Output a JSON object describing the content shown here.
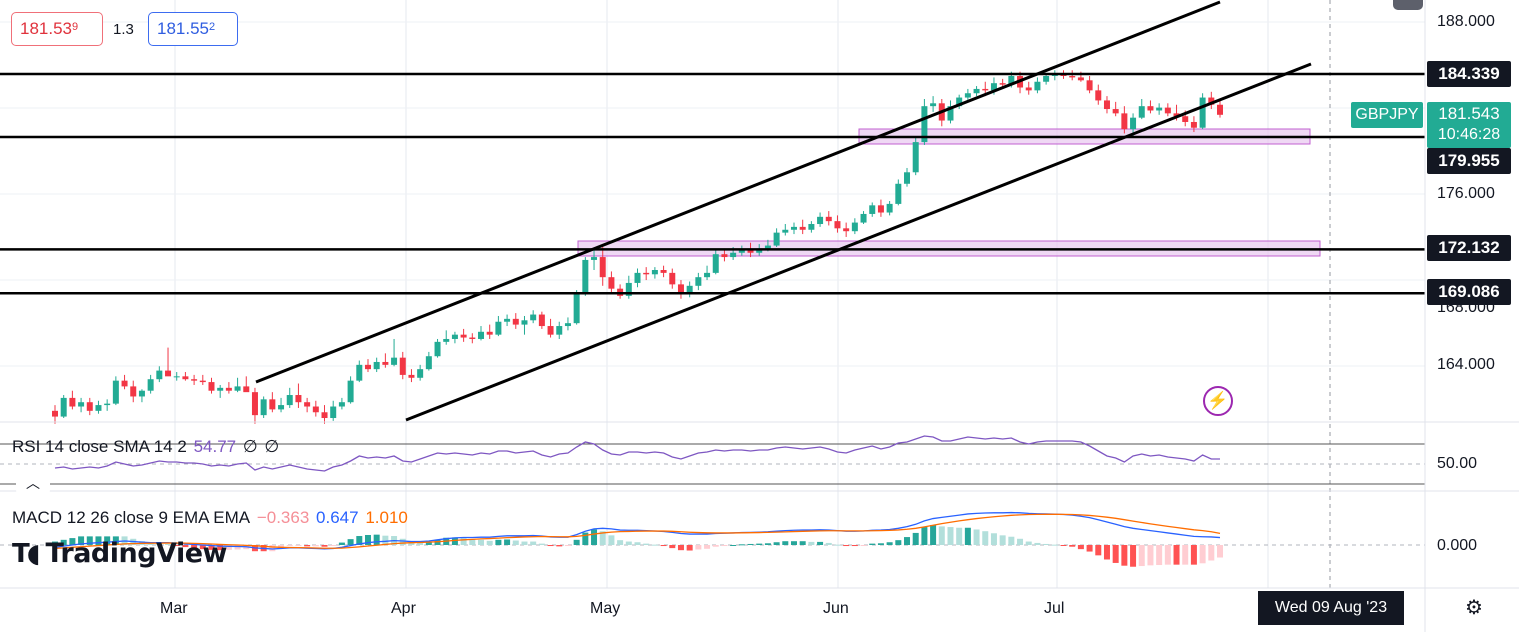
{
  "header": {
    "sell_price_main": "181.53",
    "sell_price_sup": "9",
    "spread": "1.3",
    "buy_price_main": "181.55",
    "buy_price_sup": "2"
  },
  "symbol": "GBPJPY",
  "last_price": "181.543",
  "countdown": "10:46:28",
  "cursor_date": "Wed 09 Aug '23",
  "logo_text": "TradingView",
  "rsi": {
    "label": "RSI 14 close SMA 14 2",
    "value": "54.77",
    "extra1": "∅",
    "extra2": "∅",
    "axis_label": "50.00"
  },
  "macd": {
    "label": "MACD 12 26 close 9 EMA EMA",
    "histogram": "−0.363",
    "macd": "0.647",
    "signal": "1.010",
    "axis_label": "0.000"
  },
  "price_axis_labels": [
    "188.000",
    "176.000",
    "168.000",
    "164.000"
  ],
  "level_tags": [
    "184.339",
    "179.955",
    "172.132",
    "169.086"
  ],
  "time_axis_labels": [
    "Mar",
    "Apr",
    "May",
    "Jun",
    "Jul"
  ],
  "colors": {
    "up": "#22ab94",
    "down": "#f23645",
    "macd_line": "#2962ff",
    "signal_line": "#ff6d00",
    "rsi_line": "#7e57c2",
    "zone_fill": "#e8c8f0",
    "zone_border": "#c060d0"
  },
  "chart_data": {
    "type": "candlestick",
    "instrument": "GBPJPY",
    "horizontal_levels": [
      184.339,
      179.955,
      172.132,
      169.086
    ],
    "price_range": [
      160,
      189
    ],
    "x_labels": [
      "Mar",
      "Apr",
      "May",
      "Jun",
      "Jul"
    ],
    "candles": [
      [
        160.9,
        161.3,
        160.0,
        160.5
      ],
      [
        160.5,
        162.0,
        160.4,
        161.8
      ],
      [
        161.8,
        162.3,
        161.0,
        161.2
      ],
      [
        161.2,
        161.8,
        160.8,
        161.5
      ],
      [
        161.5,
        161.8,
        160.6,
        160.9
      ],
      [
        160.9,
        161.6,
        160.7,
        161.3
      ],
      [
        161.3,
        161.7,
        160.9,
        161.4
      ],
      [
        161.4,
        163.3,
        161.3,
        163.0
      ],
      [
        163.0,
        163.4,
        162.4,
        162.6
      ],
      [
        162.6,
        163.0,
        161.5,
        161.9
      ],
      [
        161.9,
        162.4,
        161.5,
        162.3
      ],
      [
        162.3,
        163.4,
        162.1,
        163.1
      ],
      [
        163.1,
        164.0,
        162.9,
        163.7
      ],
      [
        163.7,
        165.3,
        163.4,
        163.3
      ],
      [
        163.3,
        163.6,
        163.0,
        163.3
      ],
      [
        163.3,
        163.6,
        163.0,
        163.1
      ],
      [
        163.1,
        163.4,
        162.7,
        163.0
      ],
      [
        163.0,
        163.4,
        162.7,
        162.9
      ],
      [
        162.9,
        163.2,
        162.1,
        162.3
      ],
      [
        162.3,
        162.7,
        161.8,
        162.5
      ],
      [
        162.5,
        162.9,
        162.1,
        162.3
      ],
      [
        162.3,
        163.2,
        162.2,
        162.6
      ],
      [
        162.6,
        163.3,
        162.4,
        162.2
      ],
      [
        162.2,
        162.5,
        160.0,
        160.6
      ],
      [
        160.6,
        161.9,
        160.4,
        161.7
      ],
      [
        161.7,
        162.2,
        160.8,
        161.0
      ],
      [
        161.0,
        161.8,
        160.8,
        161.3
      ],
      [
        161.3,
        162.5,
        161.1,
        162.0
      ],
      [
        162.0,
        162.8,
        161.1,
        161.5
      ],
      [
        161.5,
        161.8,
        160.8,
        161.2
      ],
      [
        161.2,
        161.6,
        160.5,
        160.8
      ],
      [
        160.8,
        161.3,
        160.0,
        160.4
      ],
      [
        160.4,
        161.6,
        160.2,
        161.2
      ],
      [
        161.2,
        161.8,
        161.0,
        161.5
      ],
      [
        161.5,
        163.3,
        161.4,
        163.0
      ],
      [
        163.0,
        164.4,
        162.9,
        164.1
      ],
      [
        164.1,
        164.5,
        163.6,
        163.8
      ],
      [
        163.8,
        164.6,
        163.6,
        164.3
      ],
      [
        164.3,
        164.9,
        163.9,
        164.1
      ],
      [
        164.1,
        165.9,
        164.0,
        164.6
      ],
      [
        164.6,
        165.0,
        163.1,
        163.4
      ],
      [
        163.4,
        163.8,
        162.9,
        163.2
      ],
      [
        163.2,
        164.1,
        163.0,
        163.8
      ],
      [
        163.8,
        165.0,
        163.7,
        164.7
      ],
      [
        164.7,
        165.9,
        164.6,
        165.7
      ],
      [
        165.7,
        166.5,
        165.5,
        165.9
      ],
      [
        165.9,
        166.4,
        165.6,
        166.2
      ],
      [
        166.2,
        166.6,
        165.7,
        166.0
      ],
      [
        166.0,
        166.3,
        165.6,
        165.9
      ],
      [
        165.9,
        166.8,
        165.8,
        166.4
      ],
      [
        166.4,
        166.9,
        165.9,
        166.2
      ],
      [
        166.2,
        167.5,
        166.1,
        167.1
      ],
      [
        167.1,
        167.6,
        166.8,
        167.3
      ],
      [
        167.3,
        167.7,
        166.6,
        166.9
      ],
      [
        166.9,
        167.5,
        166.2,
        167.2
      ],
      [
        167.2,
        167.9,
        167.0,
        167.6
      ],
      [
        167.6,
        167.8,
        166.6,
        166.8
      ],
      [
        166.8,
        167.3,
        166.0,
        166.2
      ],
      [
        166.2,
        167.1,
        165.9,
        166.8
      ],
      [
        166.8,
        167.4,
        166.5,
        167.0
      ],
      [
        167.0,
        169.3,
        166.9,
        169.0
      ],
      [
        169.0,
        171.6,
        168.9,
        171.4
      ],
      [
        171.4,
        172.1,
        170.7,
        171.6
      ],
      [
        171.6,
        172.3,
        169.6,
        170.2
      ],
      [
        170.2,
        170.6,
        169.1,
        169.4
      ],
      [
        169.4,
        169.7,
        168.7,
        168.9
      ],
      [
        168.9,
        170.3,
        168.7,
        169.8
      ],
      [
        169.8,
        170.8,
        169.5,
        170.5
      ],
      [
        170.5,
        170.9,
        170.0,
        170.4
      ],
      [
        170.4,
        170.9,
        170.1,
        170.7
      ],
      [
        170.7,
        171.0,
        170.2,
        170.5
      ],
      [
        170.5,
        170.8,
        169.4,
        169.7
      ],
      [
        169.7,
        170.0,
        168.7,
        169.0
      ],
      [
        169.0,
        169.9,
        168.8,
        169.6
      ],
      [
        169.6,
        170.5,
        169.3,
        170.2
      ],
      [
        170.2,
        171.0,
        170.0,
        170.5
      ],
      [
        170.5,
        172.1,
        170.4,
        171.8
      ],
      [
        171.8,
        172.2,
        171.3,
        171.6
      ],
      [
        171.6,
        172.3,
        171.4,
        171.9
      ],
      [
        171.9,
        172.4,
        171.7,
        172.1
      ],
      [
        172.1,
        172.6,
        171.6,
        171.9
      ],
      [
        171.9,
        172.5,
        171.7,
        172.2
      ],
      [
        172.2,
        172.8,
        172.0,
        172.4
      ],
      [
        172.4,
        173.6,
        172.3,
        173.3
      ],
      [
        173.3,
        173.9,
        173.1,
        173.5
      ],
      [
        173.5,
        174.0,
        173.2,
        173.7
      ],
      [
        173.7,
        174.2,
        173.2,
        173.5
      ],
      [
        173.5,
        174.1,
        173.3,
        173.9
      ],
      [
        173.9,
        174.7,
        173.7,
        174.4
      ],
      [
        174.4,
        174.8,
        173.8,
        174.1
      ],
      [
        174.1,
        174.5,
        173.3,
        173.6
      ],
      [
        173.6,
        174.0,
        173.0,
        173.4
      ],
      [
        173.4,
        174.3,
        173.2,
        174.0
      ],
      [
        174.0,
        174.8,
        173.9,
        174.6
      ],
      [
        174.6,
        175.4,
        174.4,
        175.2
      ],
      [
        175.2,
        175.6,
        174.4,
        174.7
      ],
      [
        174.7,
        175.5,
        174.5,
        175.3
      ],
      [
        175.3,
        177.0,
        175.2,
        176.7
      ],
      [
        176.7,
        177.8,
        176.5,
        177.5
      ],
      [
        177.5,
        179.9,
        177.3,
        179.6
      ],
      [
        179.6,
        182.6,
        179.4,
        182.1
      ],
      [
        182.1,
        182.8,
        181.7,
        182.3
      ],
      [
        182.3,
        182.6,
        180.7,
        181.1
      ],
      [
        181.1,
        182.5,
        180.9,
        182.1
      ],
      [
        182.1,
        182.9,
        181.9,
        182.7
      ],
      [
        182.7,
        183.3,
        182.5,
        183.0
      ],
      [
        183.0,
        183.5,
        182.8,
        183.3
      ],
      [
        183.3,
        183.8,
        182.8,
        183.2
      ],
      [
        183.2,
        184.1,
        182.9,
        183.7
      ],
      [
        183.7,
        184.0,
        183.3,
        183.6
      ],
      [
        183.6,
        184.5,
        183.4,
        184.2
      ],
      [
        184.2,
        184.5,
        183.0,
        183.4
      ],
      [
        183.4,
        183.8,
        182.9,
        183.2
      ],
      [
        183.2,
        184.1,
        183.0,
        183.8
      ],
      [
        183.8,
        184.4,
        183.6,
        184.2
      ],
      [
        184.2,
        184.6,
        183.9,
        184.3
      ],
      [
        184.3,
        184.6,
        184.0,
        184.2
      ],
      [
        184.2,
        184.6,
        183.9,
        184.1
      ],
      [
        184.1,
        184.5,
        183.8,
        183.9
      ],
      [
        183.9,
        184.2,
        183.0,
        183.2
      ],
      [
        183.2,
        183.6,
        182.2,
        182.5
      ],
      [
        182.5,
        182.8,
        181.6,
        181.9
      ],
      [
        181.9,
        182.4,
        181.4,
        181.6
      ],
      [
        181.6,
        182.1,
        180.2,
        180.5
      ],
      [
        180.5,
        181.6,
        180.0,
        181.3
      ],
      [
        181.3,
        182.6,
        181.2,
        182.1
      ],
      [
        182.1,
        182.5,
        181.6,
        181.8
      ],
      [
        181.8,
        182.3,
        181.5,
        182.0
      ],
      [
        182.0,
        182.3,
        181.4,
        181.6
      ],
      [
        181.6,
        182.2,
        181.1,
        181.4
      ],
      [
        181.4,
        181.8,
        180.7,
        181.0
      ],
      [
        181.0,
        181.4,
        180.3,
        180.6
      ],
      [
        180.6,
        183.0,
        180.5,
        182.7
      ],
      [
        182.7,
        183.1,
        181.9,
        182.2
      ],
      [
        182.2,
        182.6,
        181.3,
        181.5
      ]
    ],
    "rsi": [
      46,
      47,
      45,
      46,
      47,
      46,
      48,
      52,
      50,
      48,
      49,
      51,
      53,
      52,
      52,
      51,
      51,
      50,
      48,
      49,
      48,
      50,
      51,
      44,
      47,
      45,
      47,
      49,
      47,
      45,
      44,
      43,
      47,
      49,
      53,
      58,
      56,
      57,
      56,
      58,
      53,
      52,
      55,
      58,
      61,
      60,
      61,
      60,
      59,
      61,
      60,
      63,
      63,
      61,
      62,
      63,
      59,
      57,
      60,
      61,
      67,
      72,
      70,
      64,
      60,
      59,
      62,
      62,
      61,
      62,
      61,
      57,
      55,
      58,
      61,
      62,
      64,
      63,
      64,
      64,
      63,
      64,
      64,
      66,
      67,
      66,
      65,
      66,
      67,
      65,
      62,
      61,
      64,
      66,
      68,
      65,
      67,
      71,
      72,
      75,
      78,
      77,
      73,
      73,
      75,
      77,
      76,
      75,
      76,
      75,
      76,
      72,
      70,
      72,
      73,
      73,
      73,
      73,
      72,
      68,
      63,
      58,
      56,
      52,
      58,
      60,
      58,
      59,
      57,
      56,
      55,
      53,
      59,
      55,
      55
    ],
    "macd": [
      -0.2,
      -0.1,
      0.0,
      0.1,
      0.15,
      0.2,
      0.25,
      0.3,
      0.35,
      0.3,
      0.25,
      0.2,
      0.2,
      0.2,
      0.15,
      0.1,
      0.05,
      0.0,
      -0.05,
      -0.1,
      -0.12,
      -0.13,
      -0.15,
      -0.25,
      -0.3,
      -0.35,
      -0.3,
      -0.25,
      -0.25,
      -0.28,
      -0.3,
      -0.33,
      -0.3,
      -0.2,
      -0.05,
      0.1,
      0.2,
      0.28,
      0.32,
      0.38,
      0.35,
      0.3,
      0.3,
      0.35,
      0.45,
      0.55,
      0.62,
      0.65,
      0.65,
      0.68,
      0.68,
      0.75,
      0.8,
      0.8,
      0.8,
      0.82,
      0.78,
      0.7,
      0.68,
      0.68,
      0.9,
      1.2,
      1.4,
      1.45,
      1.4,
      1.3,
      1.28,
      1.28,
      1.25,
      1.22,
      1.18,
      1.1,
      1.0,
      0.95,
      0.95,
      0.95,
      1.0,
      1.02,
      1.05,
      1.08,
      1.1,
      1.12,
      1.15,
      1.2,
      1.25,
      1.28,
      1.3,
      1.3,
      1.32,
      1.3,
      1.25,
      1.2,
      1.2,
      1.22,
      1.28,
      1.3,
      1.35,
      1.45,
      1.6,
      1.8,
      2.1,
      2.3,
      2.4,
      2.5,
      2.6,
      2.7,
      2.75,
      2.78,
      2.8,
      2.8,
      2.82,
      2.8,
      2.75,
      2.72,
      2.7,
      2.68,
      2.65,
      2.6,
      2.5,
      2.38,
      2.2,
      2.0,
      1.8,
      1.6,
      1.45,
      1.35,
      1.25,
      1.15,
      1.05,
      0.95,
      0.85,
      0.75,
      0.72,
      0.7,
      0.647
    ],
    "signal": [
      -0.3,
      -0.25,
      -0.2,
      -0.15,
      -0.1,
      -0.05,
      0.0,
      0.05,
      0.1,
      0.12,
      0.14,
      0.15,
      0.16,
      0.17,
      0.17,
      0.16,
      0.14,
      0.12,
      0.09,
      0.05,
      0.02,
      0.0,
      -0.03,
      -0.07,
      -0.12,
      -0.17,
      -0.2,
      -0.22,
      -0.23,
      -0.24,
      -0.26,
      -0.28,
      -0.28,
      -0.27,
      -0.22,
      -0.16,
      -0.09,
      -0.02,
      0.05,
      0.12,
      0.17,
      0.2,
      0.22,
      0.25,
      0.29,
      0.34,
      0.4,
      0.45,
      0.49,
      0.53,
      0.56,
      0.6,
      0.64,
      0.67,
      0.7,
      0.72,
      0.74,
      0.73,
      0.72,
      0.71,
      0.75,
      0.84,
      0.95,
      1.05,
      1.12,
      1.16,
      1.18,
      1.2,
      1.21,
      1.21,
      1.21,
      1.19,
      1.15,
      1.11,
      1.08,
      1.06,
      1.05,
      1.05,
      1.05,
      1.06,
      1.07,
      1.08,
      1.1,
      1.12,
      1.14,
      1.17,
      1.19,
      1.21,
      1.23,
      1.24,
      1.24,
      1.23,
      1.23,
      1.23,
      1.24,
      1.25,
      1.27,
      1.31,
      1.37,
      1.45,
      1.58,
      1.72,
      1.86,
      1.98,
      2.1,
      2.2,
      2.3,
      2.38,
      2.46,
      2.52,
      2.58,
      2.62,
      2.65,
      2.66,
      2.67,
      2.67,
      2.66,
      2.65,
      2.62,
      2.57,
      2.5,
      2.42,
      2.32,
      2.2,
      2.08,
      1.96,
      1.84,
      1.73,
      1.62,
      1.52,
      1.42,
      1.32,
      1.25,
      1.15,
      1.01
    ]
  }
}
